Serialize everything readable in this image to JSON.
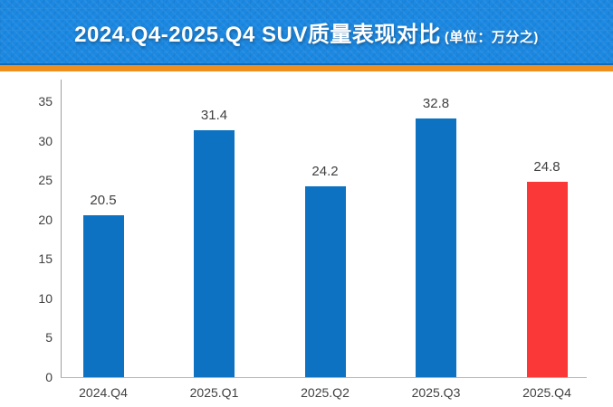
{
  "header": {
    "title": "2024.Q4-2025.Q4 SUV质量表现对比",
    "unit_label": "(单位：万分之)",
    "bg_color": "#1b88e2",
    "accent_strip_color": "#ee8f1e",
    "text_color": "#ffffff"
  },
  "chart_data": {
    "type": "bar",
    "title": "2024.Q4-2025.Q4 SUV质量表现对比",
    "unit": "万分之 (per 10,000)",
    "categories": [
      "2024.Q4",
      "2025.Q1",
      "2025.Q2",
      "2025.Q3",
      "2025.Q4"
    ],
    "values": [
      20.5,
      31.4,
      24.2,
      32.8,
      24.8
    ],
    "data_labels": [
      "20.5",
      "31.4",
      "24.2",
      "32.8",
      "24.8"
    ],
    "bar_colors": [
      "#0d72c1",
      "#0d72c1",
      "#0d72c1",
      "#0d72c1",
      "#fa3837"
    ],
    "highlight_index": 4,
    "ylim": [
      0,
      35
    ],
    "yticks": [
      0,
      5,
      10,
      15,
      20,
      25,
      30,
      35
    ],
    "xlabel": "",
    "ylabel": "",
    "grid": false,
    "legend": null,
    "label_color": "#3f3f3f"
  }
}
